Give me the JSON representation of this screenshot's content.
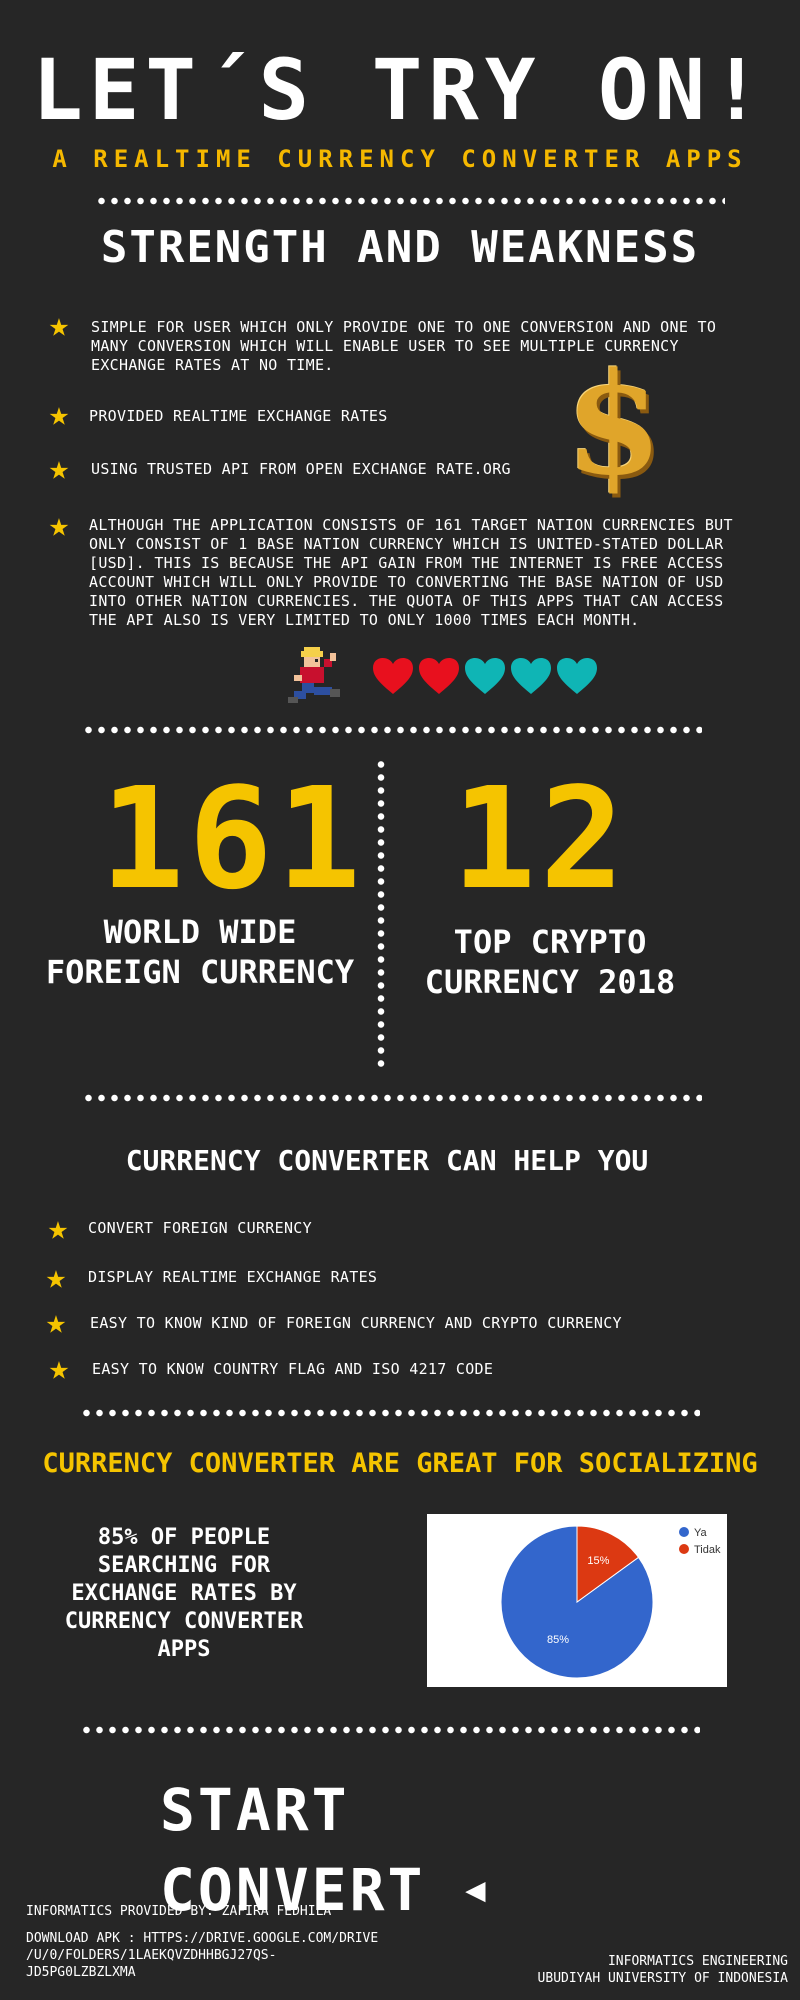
{
  "header": {
    "title": "LET´S TRY ON!",
    "subtitle": "A REALTIME CURRENCY CONVERTER APPS"
  },
  "strength": {
    "title": "STRENGTH AND WEAKNESS",
    "items": [
      "SIMPLE FOR USER WHICH ONLY PROVIDE ONE TO ONE CONVERSION AND ONE TO MANY CONVERSION WHICH WILL ENABLE USER TO SEE MULTIPLE CURRENCY EXCHANGE RATES AT NO TIME.",
      "PROVIDED REALTIME EXCHANGE RATES",
      "USING TRUSTED API FROM OPEN EXCHANGE RATE.ORG",
      "ALTHOUGH THE APPLICATION CONSISTS OF 161 TARGET NATION CURRENCIES BUT ONLY CONSIST OF 1 BASE NATION CURRENCY WHICH IS UNITED-STATED DOLLAR [USD]. THIS IS BECAUSE THE API GAIN FROM THE INTERNET IS FREE ACCESS ACCOUNT WHICH WILL ONLY PROVIDE TO CONVERTING THE BASE NATION OF USD INTO OTHER NATION CURRENCIES. THE QUOTA OF THIS APPS THAT CAN ACCESS THE API ALSO IS VERY LIMITED TO ONLY 1000 TIMES EACH MONTH."
    ],
    "dollar_symbol": "$",
    "hearts": {
      "filled": 2,
      "total": 5,
      "filled_color": "#e8101e",
      "empty_color": "#0fb5b5"
    }
  },
  "stats": [
    {
      "number": "161",
      "label_line1": "WORLD WIDE",
      "label_line2": "FOREIGN CURRENCY"
    },
    {
      "number": "12",
      "label_line1": "TOP CRYPTO",
      "label_line2": "CURRENCY 2018"
    }
  ],
  "help": {
    "title": "CURRENCY CONVERTER CAN HELP YOU",
    "items": [
      "CONVERT FOREIGN CURRENCY",
      "DISPLAY REALTIME EXCHANGE RATES",
      "EASY TO KNOW KIND OF FOREIGN CURRENCY AND CRYPTO CURRENCY",
      "EASY TO KNOW COUNTRY FLAG AND ISO 4217 CODE"
    ]
  },
  "social": {
    "title": "CURRENCY CONVERTER ARE GREAT FOR SOCIALIZING",
    "text_lines": [
      "85% OF PEOPLE",
      "SEARCHING FOR",
      "EXCHANGE RATES BY",
      "CURRENCY CONVERTER",
      "APPS"
    ]
  },
  "chart_data": {
    "type": "pie",
    "categories": [
      "Ya",
      "Tidak"
    ],
    "values": [
      85,
      15
    ],
    "labels": [
      "85%",
      "15%"
    ],
    "colors": [
      "#3366cc",
      "#dc3912"
    ],
    "legend": "top-right"
  },
  "cta": {
    "label": "START CONVERT",
    "arrow": "◀"
  },
  "footer": {
    "provided_by": "INFORMATICS PROVIDED BY: ZAFIRA FEDHILA",
    "download_line1": "DOWNLOAD APK : HTTPS://DRIVE.GOOGLE.COM/DRIVE",
    "download_line2": "/U/0/FOLDERS/1LAEKQVZDHHBGJ27QS-",
    "download_line3": "JD5PG0LZBZLXMA",
    "org_line1": "INFORMATICS ENGINEERING",
    "org_line2": "UBUDIYAH UNIVERSITY OF INDONESIA"
  }
}
